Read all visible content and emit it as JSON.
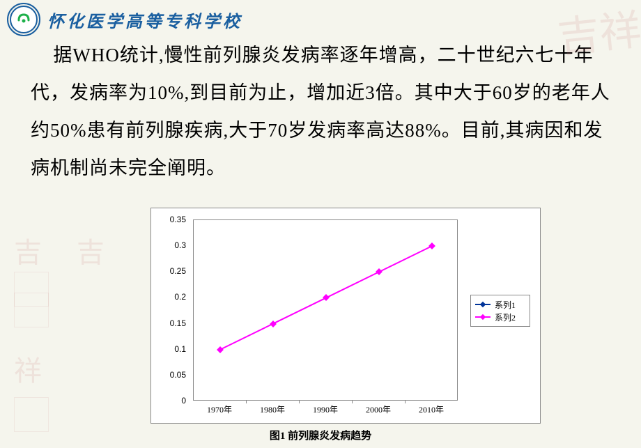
{
  "header": {
    "school_name": "怀化医学高等专科学校"
  },
  "paragraph": {
    "text": "据WHO统计,慢性前列腺炎发病率逐年增高，二十世纪六七十年代，发病率为10%,到目前为止，增加近3倍。其中大于60岁的老年人约50%患有前列腺疾病,大于70岁发病率高达88%。目前,其病因和发病机制尚未完全阐明。"
  },
  "chart": {
    "type": "line",
    "caption": "图1 前列腺炎发病趋势",
    "background_color": "#ffffff",
    "border_color": "#888888",
    "ylim": [
      0,
      0.35
    ],
    "ytick_step": 0.05,
    "y_ticks": [
      0,
      0.05,
      0.1,
      0.15,
      0.2,
      0.25,
      0.3,
      0.35
    ],
    "x_categories": [
      "1970年",
      "1980年",
      "1990年",
      "2000年",
      "2010年"
    ],
    "series": [
      {
        "name": "系列1",
        "color": "#003399",
        "marker": "diamond",
        "values": [
          null,
          null,
          null,
          null,
          null
        ]
      },
      {
        "name": "系列2",
        "color": "#ff00ff",
        "marker": "square",
        "values": [
          0.1,
          0.15,
          0.2,
          0.25,
          0.3
        ]
      }
    ],
    "legend_position": "right",
    "label_fontsize": 12
  }
}
